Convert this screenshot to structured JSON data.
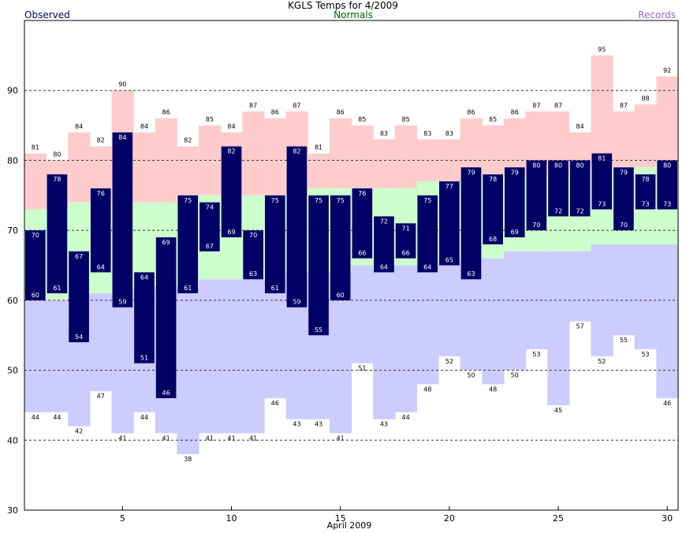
{
  "chart_data": {
    "type": "bar",
    "title": "KGLS Temps for 4/2009",
    "xlabel": "April 2009",
    "legend": {
      "observed": "Observed",
      "normals": "Normals",
      "records": "Records"
    },
    "colors": {
      "observed": "#000066",
      "normals": "#ccffcc",
      "record_high": "#ffcccc",
      "record_low": "#ccccff",
      "observed_label": "#000066",
      "normals_label": "#006600",
      "records_label": "#9966cc"
    },
    "ylim": [
      30,
      100
    ],
    "yticks": [
      30,
      40,
      50,
      60,
      70,
      80,
      90
    ],
    "xlim": [
      0.5,
      30.5
    ],
    "xticks": [
      5,
      10,
      15,
      20,
      25,
      30
    ],
    "grid": "dashed at 40, 50, 60, 70, 80, 90",
    "days": [
      1,
      2,
      3,
      4,
      5,
      6,
      7,
      8,
      9,
      10,
      11,
      12,
      13,
      14,
      15,
      16,
      17,
      18,
      19,
      20,
      21,
      22,
      23,
      24,
      25,
      26,
      27,
      28,
      29,
      30
    ],
    "observed_high": [
      70,
      78,
      67,
      76,
      84,
      64,
      69,
      75,
      74,
      82,
      70,
      75,
      82,
      75,
      75,
      76,
      72,
      71,
      75,
      77,
      79,
      78,
      79,
      80,
      80,
      80,
      81,
      79,
      78,
      80
    ],
    "observed_low": [
      60,
      61,
      54,
      64,
      59,
      51,
      46,
      61,
      67,
      69,
      63,
      61,
      59,
      55,
      60,
      66,
      64,
      66,
      64,
      65,
      63,
      68,
      69,
      70,
      72,
      72,
      73,
      70,
      73,
      73
    ],
    "normal_high": [
      73,
      73,
      74,
      74,
      74,
      74,
      74,
      75,
      75,
      75,
      75,
      75,
      75,
      76,
      76,
      76,
      76,
      76,
      77,
      77,
      77,
      78,
      78,
      78,
      78,
      79,
      79,
      79,
      79,
      80
    ],
    "normal_low": [
      60,
      60,
      61,
      61,
      61,
      62,
      62,
      62,
      63,
      63,
      63,
      63,
      64,
      64,
      64,
      65,
      65,
      65,
      65,
      66,
      66,
      66,
      67,
      67,
      67,
      67,
      68,
      68,
      68,
      68
    ],
    "record_high": [
      81,
      80,
      84,
      82,
      90,
      84,
      86,
      82,
      85,
      84,
      87,
      86,
      87,
      81,
      86,
      85,
      83,
      85,
      83,
      83,
      86,
      85,
      86,
      87,
      87,
      84,
      95,
      87,
      88,
      92
    ],
    "record_low": [
      44,
      44,
      42,
      47,
      41,
      44,
      41,
      38,
      41,
      41,
      41,
      46,
      43,
      43,
      41,
      51,
      43,
      44,
      48,
      52,
      50,
      48,
      50,
      53,
      45,
      57,
      52,
      55,
      53,
      46
    ]
  }
}
